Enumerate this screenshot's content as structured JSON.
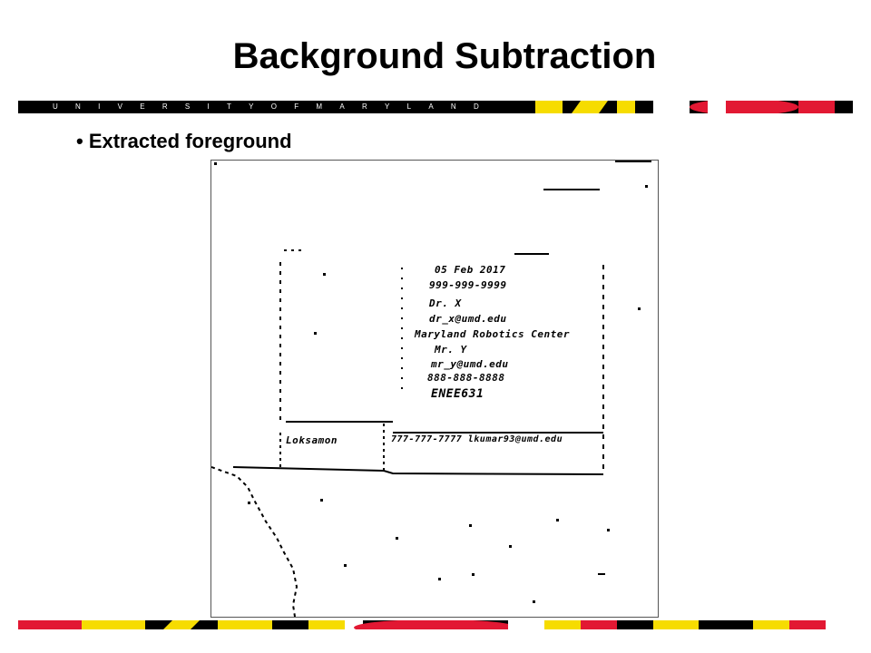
{
  "slide": {
    "title": "Background Subtraction",
    "bullet": "• Extracted foreground"
  },
  "banner": {
    "university_letters": [
      "U",
      "N",
      "I",
      "V",
      "E",
      "R",
      "S",
      "I",
      "T",
      "Y",
      "O",
      "F",
      "M",
      "A",
      "R",
      "Y",
      "L",
      "A",
      "N",
      "D"
    ],
    "colors": {
      "black": "#000000",
      "gold": "#f6dc00",
      "red": "#e21833",
      "white": "#ffffff"
    }
  },
  "figure": {
    "handwritten_lines": [
      "05 Feb 2017",
      "999-999-9999",
      "Dr. X",
      "dr_x@umd.edu",
      "Maryland Robotics Center",
      "Mr. Y",
      "mr_y@umd.edu",
      "888-888-8888",
      "ENEE631"
    ],
    "row_left": "Loksamon",
    "row_right": "777-777-7777 lkumar93@umd.edu"
  }
}
